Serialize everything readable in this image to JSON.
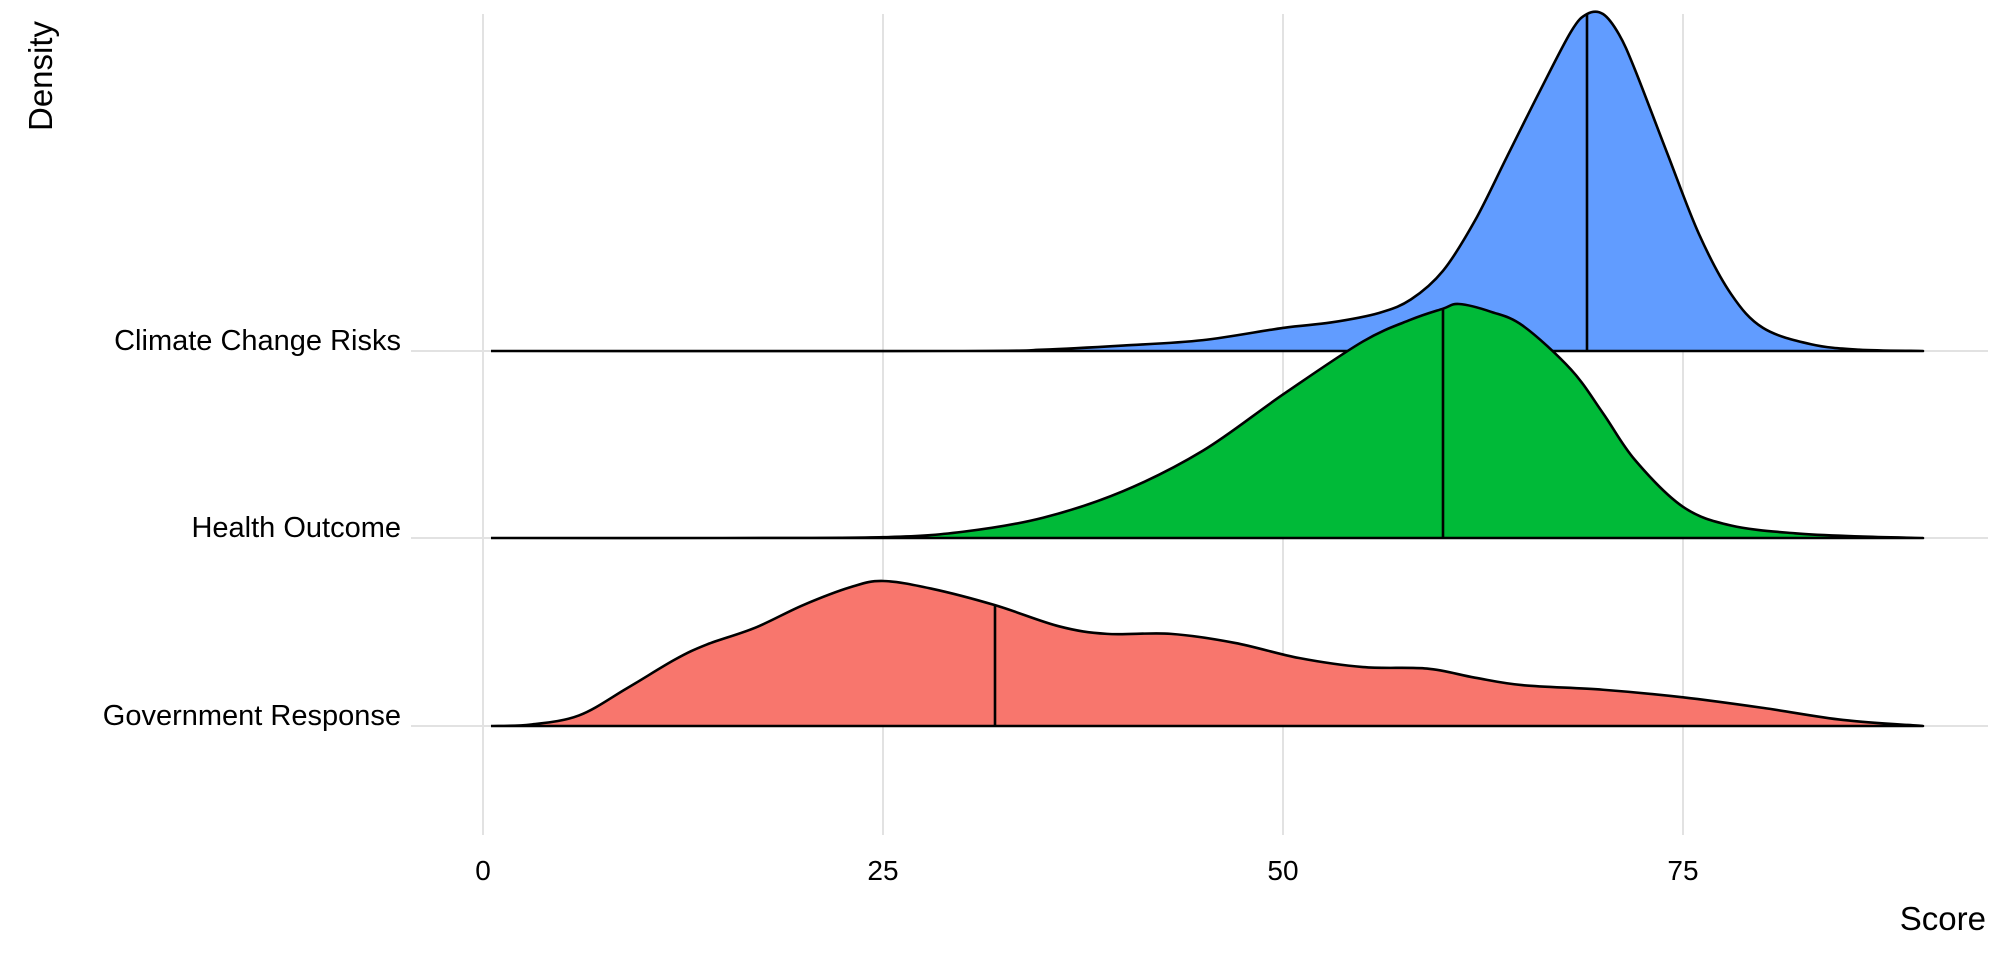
{
  "chart_data": {
    "type": "ridgeline",
    "xlabel": "Score",
    "ylabel": "Density",
    "xlim": [
      -1,
      94
    ],
    "x_ticks": [
      0,
      25,
      50,
      75
    ],
    "grid": true,
    "legend": "none",
    "series": [
      {
        "name": "Government Response",
        "color": "#f8766d",
        "median": 32,
        "range": [
          0.5,
          90
        ],
        "density_peak": 0.96,
        "x": [
          0.5,
          3,
          6,
          9,
          12,
          14,
          17,
          20,
          23,
          25,
          28,
          32,
          36,
          39,
          43,
          47,
          51,
          55,
          59,
          62,
          65,
          70,
          75,
          80,
          85,
          90
        ],
        "density": [
          0,
          0.01,
          0.07,
          0.25,
          0.44,
          0.54,
          0.65,
          0.8,
          0.92,
          0.96,
          0.91,
          0.8,
          0.66,
          0.61,
          0.61,
          0.55,
          0.45,
          0.39,
          0.38,
          0.32,
          0.27,
          0.24,
          0.19,
          0.12,
          0.04,
          0
        ]
      },
      {
        "name": "Health Outcome",
        "color": "#00ba38",
        "median": 60,
        "range": [
          0.5,
          90
        ],
        "density_peak": 1.5,
        "x": [
          0.5,
          15,
          25,
          30,
          35,
          40,
          45,
          50,
          55,
          58,
          60,
          61,
          63,
          65,
          68,
          70,
          72,
          75,
          78,
          82,
          86,
          90
        ],
        "density": [
          0,
          0,
          0.005,
          0.04,
          0.13,
          0.3,
          0.56,
          0.92,
          1.26,
          1.4,
          1.47,
          1.5,
          1.45,
          1.36,
          1.08,
          0.8,
          0.5,
          0.2,
          0.08,
          0.03,
          0.01,
          0
        ]
      },
      {
        "name": "Climate Change Risks",
        "color": "#619cff",
        "median": 69,
        "range": [
          0.5,
          90
        ],
        "density_peak": 2.48,
        "x": [
          0.5,
          30,
          35,
          40,
          45,
          50,
          53,
          56,
          58,
          60,
          62,
          64,
          66,
          68,
          69,
          70,
          71,
          72,
          74,
          76,
          78,
          80,
          83,
          86,
          90
        ],
        "density": [
          0,
          0,
          0.01,
          0.04,
          0.08,
          0.17,
          0.21,
          0.28,
          0.38,
          0.59,
          0.96,
          1.43,
          1.9,
          2.35,
          2.48,
          2.48,
          2.33,
          2.07,
          1.46,
          0.86,
          0.42,
          0.17,
          0.05,
          0.01,
          0
        ]
      }
    ]
  }
}
